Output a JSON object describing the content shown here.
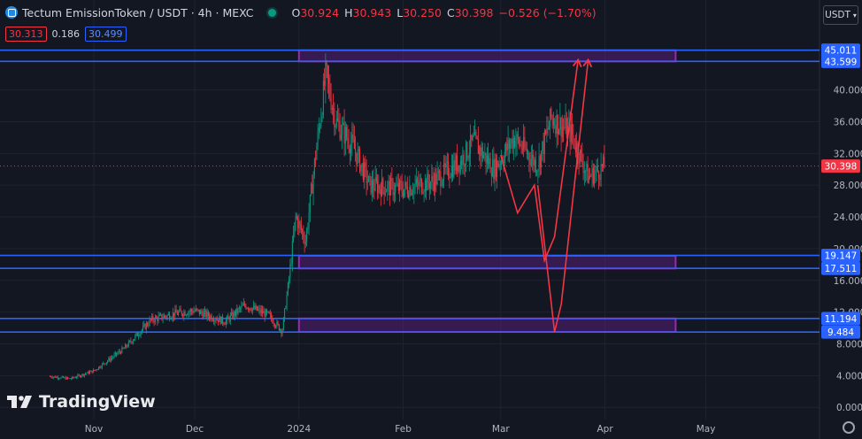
{
  "header": {
    "title": "Tectum EmissionToken / USDT · 4h · MEXC",
    "o_label": "O",
    "o": "30.924",
    "h_label": "H",
    "h": "30.943",
    "l_label": "L",
    "l": "30.250",
    "c_label": "C",
    "c": "30.398",
    "change": "−0.526 (−1.70%)",
    "bid": "30.313",
    "spread": "0.186",
    "ask": "30.499",
    "currency": "USDT"
  },
  "brand": {
    "name": "TradingView"
  },
  "colors": {
    "up": "#089981",
    "down": "#f23645",
    "line": "#2962ff",
    "zone": "#7b1fa2",
    "arrow": "#f23645"
  },
  "chart_data": {
    "type": "candlestick",
    "title": "Tectum EmissionToken / USDT · 4h · MEXC",
    "x_tick_labels": [
      "Nov",
      "Dec",
      "2024",
      "Feb",
      "Mar",
      "Apr",
      "May"
    ],
    "y_tick_labels": [
      "0.000",
      "4.000",
      "8.000",
      "12.000",
      "16.000",
      "20.000",
      "24.000",
      "28.000",
      "32.000",
      "36.000",
      "40.000"
    ],
    "ylim": [
      0,
      48
    ],
    "current_price": 30.398,
    "horizontal_levels": [
      45.011,
      43.599,
      19.147,
      17.511,
      11.194,
      9.484
    ],
    "zones": [
      {
        "from": 43.6,
        "to": 45.0,
        "start": "2024-01-01",
        "end": "2024-04-22"
      },
      {
        "from": 17.5,
        "to": 19.1,
        "start": "2024-01-01",
        "end": "2024-04-22"
      },
      {
        "from": 9.5,
        "to": 11.2,
        "start": "2024-01-01",
        "end": "2024-04-22"
      }
    ],
    "price_path": [
      {
        "date": "2023-10-19",
        "price": 3.9
      },
      {
        "date": "2023-10-25",
        "price": 3.6
      },
      {
        "date": "2023-11-01",
        "price": 4.6
      },
      {
        "date": "2023-11-10",
        "price": 7.4
      },
      {
        "date": "2023-11-18",
        "price": 11.0
      },
      {
        "date": "2023-11-25",
        "price": 11.8
      },
      {
        "date": "2023-12-01",
        "price": 12.2
      },
      {
        "date": "2023-12-10",
        "price": 10.8
      },
      {
        "date": "2023-12-16",
        "price": 12.9
      },
      {
        "date": "2023-12-23",
        "price": 11.6
      },
      {
        "date": "2023-12-27",
        "price": 9.6
      },
      {
        "date": "2023-12-29",
        "price": 16.0
      },
      {
        "date": "2023-12-31",
        "price": 24.0
      },
      {
        "date": "2024-01-03",
        "price": 21.0
      },
      {
        "date": "2024-01-06",
        "price": 32.0
      },
      {
        "date": "2024-01-09",
        "price": 42.0
      },
      {
        "date": "2024-01-12",
        "price": 36.0
      },
      {
        "date": "2024-01-17",
        "price": 33.0
      },
      {
        "date": "2024-01-22",
        "price": 28.0
      },
      {
        "date": "2024-02-01",
        "price": 27.5
      },
      {
        "date": "2024-02-10",
        "price": 28.5
      },
      {
        "date": "2024-02-18",
        "price": 31.0
      },
      {
        "date": "2024-02-22",
        "price": 33.5
      },
      {
        "date": "2024-02-28",
        "price": 30.0
      },
      {
        "date": "2024-03-05",
        "price": 34.0
      },
      {
        "date": "2024-03-12",
        "price": 30.5
      },
      {
        "date": "2024-03-16",
        "price": 36.5
      },
      {
        "date": "2024-03-22",
        "price": 34.5
      },
      {
        "date": "2024-03-27",
        "price": 29.0
      },
      {
        "date": "2024-04-01",
        "price": 30.4
      }
    ],
    "projection_arrows": [
      [
        {
          "date": "2024-03-01",
          "price": 31.8
        },
        {
          "date": "2024-03-06",
          "price": 24.5
        },
        {
          "date": "2024-03-11",
          "price": 28.0
        },
        {
          "date": "2024-03-14",
          "price": 18.5
        },
        {
          "date": "2024-03-17",
          "price": 21.5
        },
        {
          "date": "2024-03-24",
          "price": 43.8
        }
      ],
      [
        {
          "date": "2024-03-12",
          "price": 28.0
        },
        {
          "date": "2024-03-17",
          "price": 9.5
        },
        {
          "date": "2024-03-19",
          "price": 13.0
        },
        {
          "date": "2024-03-27",
          "price": 43.8
        }
      ]
    ]
  }
}
